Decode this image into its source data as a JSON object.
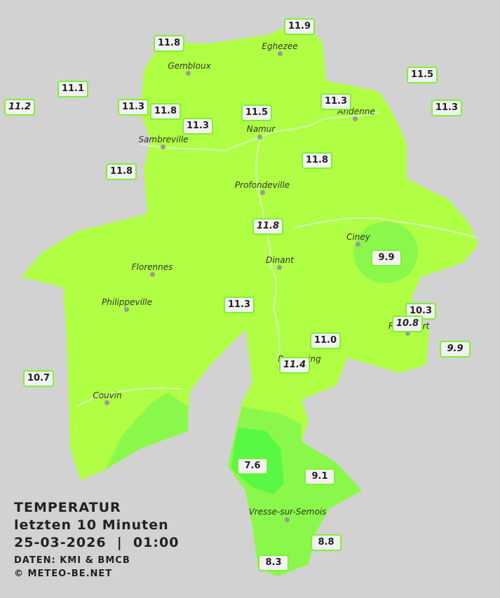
{
  "cities": [
    "Eghezee",
    "Gembloux",
    "Andenne",
    "Namur",
    "Sambreville",
    "Profondeville",
    "Ciney",
    "Dinant",
    "Florennes",
    "Philippeville",
    "Rochefort",
    "Beauraing",
    "Couvin",
    "Vresse-sur-Semois"
  ],
  "stations": [
    "11.9",
    "11.8",
    "11.1",
    "11.2",
    "11.3",
    "11.8",
    "11.3",
    "11.5",
    "11.3",
    "11.5",
    "11.3",
    "11.8",
    "11.8",
    "11.8",
    "9.9",
    "11.3",
    "10.3",
    "10.8",
    "9.9",
    "11.0",
    "11.4",
    "10.7",
    "7.6",
    "9.1",
    "8.8",
    "8.3"
  ],
  "info": {
    "title": "TEMPERATUR",
    "period": "letzten 10 Minuten",
    "timestamp": "25-03-2026  |  01:00",
    "source": "DATEN: KMI & BMCB",
    "copyright": "© METEO-BE.NET"
  }
}
